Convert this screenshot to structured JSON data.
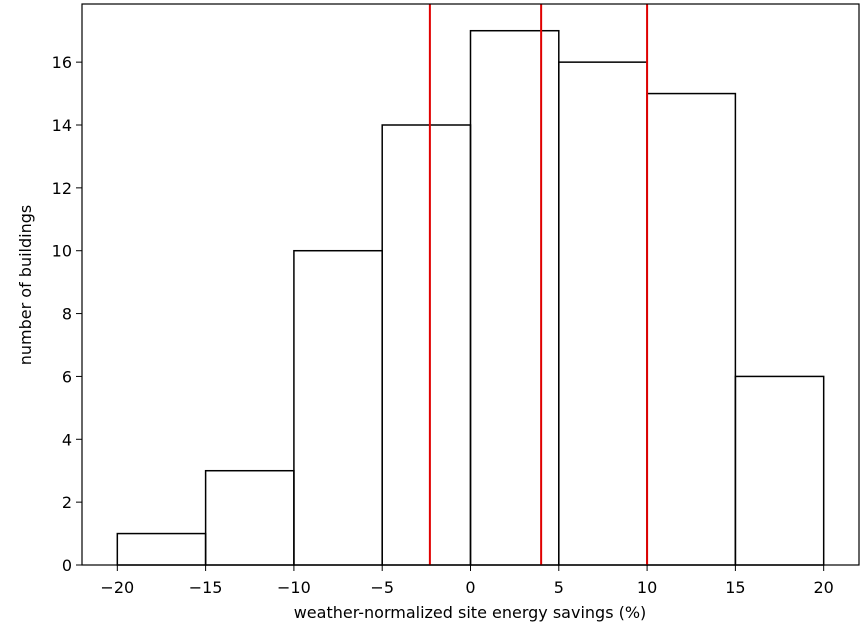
{
  "chart_data": {
    "type": "histogram",
    "xlabel": "weather-normalized site energy savings (%)",
    "ylabel": "number of buildings",
    "bins": [
      -20,
      -15,
      -10,
      -5,
      0,
      5,
      10,
      15,
      20
    ],
    "values": [
      1,
      3,
      10,
      14,
      17,
      16,
      15,
      6
    ],
    "color": "#000000",
    "vlines": {
      "color": "#e00000",
      "values": [
        -2.3,
        4.0,
        10.0
      ]
    },
    "xlim": [
      -22,
      22
    ],
    "ylim": [
      0,
      17.85
    ],
    "xticks": [
      {
        "value": -20,
        "label": "−20"
      },
      {
        "value": -15,
        "label": "−15"
      },
      {
        "value": -10,
        "label": "−10"
      },
      {
        "value": -5,
        "label": "−5"
      },
      0,
      5,
      10,
      15,
      20
    ],
    "yticks": [
      0,
      2,
      4,
      6,
      8,
      10,
      12,
      14,
      16
    ],
    "grid": false
  }
}
